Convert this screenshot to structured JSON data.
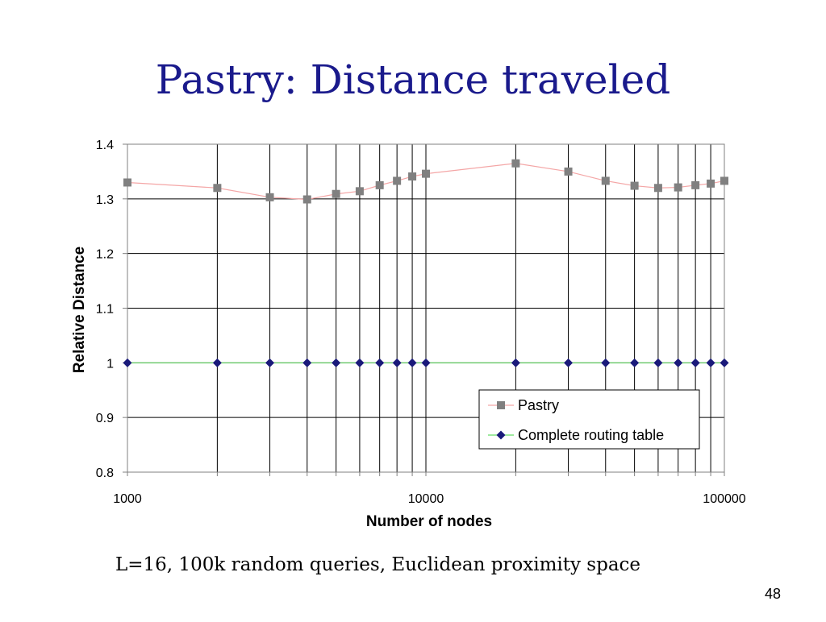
{
  "slide": {
    "title": "Pastry: Distance traveled",
    "caption": "L=16, 100k random queries, Euclidean proximity space",
    "page_number": "48"
  },
  "chart_data": {
    "type": "line",
    "title": "",
    "xlabel": "Number of nodes",
    "ylabel": "Relative Distance",
    "xscale": "log",
    "xlim": [
      1000,
      100000
    ],
    "ylim": [
      0.8,
      1.4
    ],
    "xticks": [
      1000,
      10000,
      100000
    ],
    "xtick_labels": [
      "1000",
      "10000",
      "100000"
    ],
    "yticks": [
      0.8,
      0.9,
      1,
      1.1,
      1.2,
      1.3,
      1.4
    ],
    "ytick_labels": [
      "0.8",
      "0.9",
      "1",
      "1.1",
      "1.2",
      "1.3",
      "1.4"
    ],
    "grid": true,
    "legend_position": "bottom-right",
    "x": [
      1000,
      2000,
      3000,
      4000,
      5000,
      6000,
      7000,
      8000,
      9000,
      10000,
      20000,
      30000,
      40000,
      50000,
      60000,
      70000,
      80000,
      90000,
      100000
    ],
    "series": [
      {
        "name": "Pastry",
        "color": "#808080",
        "line_color": "#f4a6a6",
        "marker": "square",
        "values": [
          1.33,
          1.32,
          1.303,
          1.299,
          1.309,
          1.314,
          1.325,
          1.333,
          1.341,
          1.346,
          1.365,
          1.35,
          1.333,
          1.324,
          1.32,
          1.321,
          1.325,
          1.328,
          1.333
        ]
      },
      {
        "name": "Complete routing table",
        "color": "#1a1a7a",
        "line_color": "#66dd66",
        "marker": "diamond",
        "values": [
          1,
          1,
          1,
          1,
          1,
          1,
          1,
          1,
          1,
          1,
          1,
          1,
          1,
          1,
          1,
          1,
          1,
          1,
          1
        ]
      }
    ]
  }
}
